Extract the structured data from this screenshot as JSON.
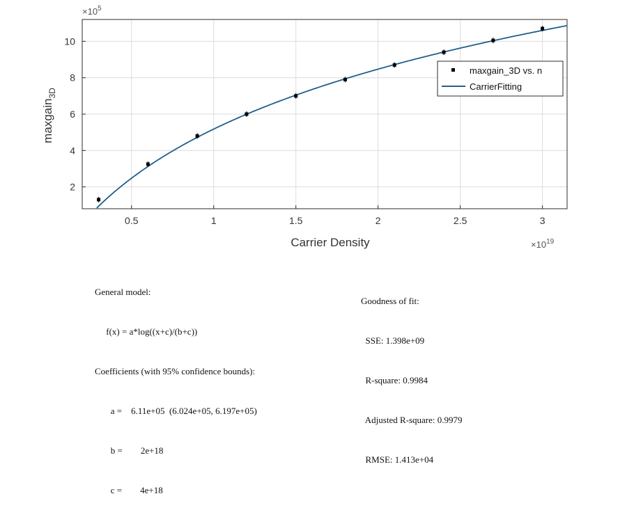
{
  "chart_data": {
    "type": "scatter",
    "xlabel": "Carrier Density",
    "ylabel_main": "maxgain",
    "ylabel_sub": "3D",
    "x_exponent_label": "×10",
    "x_exponent_power": "19",
    "y_exponent_label": "×10",
    "y_exponent_power": "5",
    "xlim": [
      0.2,
      3.15
    ],
    "ylim": [
      0.8,
      11.2
    ],
    "x_ticks": [
      0.5,
      1,
      1.5,
      2,
      2.5,
      3
    ],
    "x_tick_labels": [
      "0.5",
      "1",
      "1.5",
      "2",
      "2.5",
      "3"
    ],
    "y_ticks": [
      2,
      4,
      6,
      8,
      10
    ],
    "y_tick_labels": [
      "2",
      "4",
      "6",
      "8",
      "10"
    ],
    "grid": true,
    "legend_position": "top-right",
    "series": [
      {
        "name": "maxgain_3D vs. n",
        "kind": "points",
        "x": [
          0.3,
          0.6,
          0.9,
          1.2,
          1.5,
          1.8,
          2.1,
          2.4,
          2.7,
          3.0
        ],
        "y": [
          1.3,
          3.25,
          4.8,
          6.0,
          7.0,
          7.9,
          8.7,
          9.4,
          10.05,
          10.7
        ],
        "color": "#000000"
      },
      {
        "name": "CarrierFitting",
        "kind": "line",
        "model": {
          "a": 6.11,
          "b": 0.2,
          "c": 0.4
        },
        "color": "#1f5f8b"
      }
    ]
  },
  "fit_info": {
    "left": [
      "General model:",
      "     f(x) = a*log((x+c)/(b+c))",
      "Coefficients (with 95% confidence bounds):",
      "       a =    6.11e+05  (6.024e+05, 6.197e+05)",
      "       b =        2e+18",
      "       c =        4e+18"
    ],
    "right": [
      "Goodness of fit:",
      "  SSE: 1.398e+09",
      "  R-square: 0.9984",
      "  Adjusted R-square: 0.9979",
      "  RMSE: 1.413e+04"
    ]
  }
}
